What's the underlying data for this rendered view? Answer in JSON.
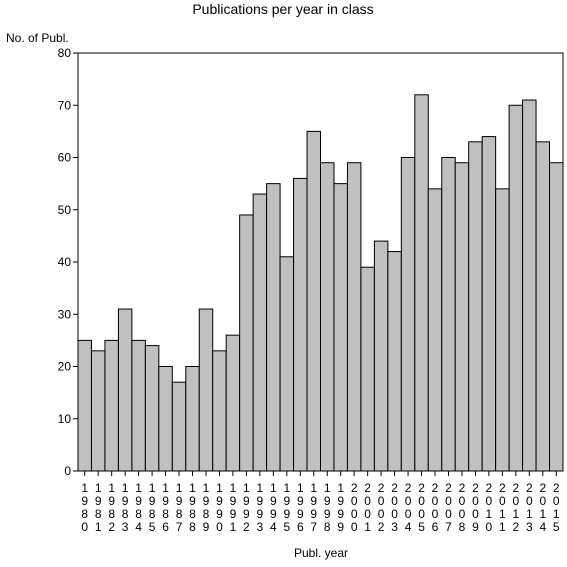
{
  "chart_data": {
    "type": "bar",
    "title": "Publications per year in class",
    "xlabel": "Publ. year",
    "ylabel": "No. of Publ.",
    "ylim": [
      0,
      80
    ],
    "yticks": [
      0,
      10,
      20,
      30,
      40,
      50,
      60,
      70,
      80
    ],
    "categories": [
      "1980",
      "1981",
      "1982",
      "1983",
      "1984",
      "1985",
      "1986",
      "1987",
      "1988",
      "1989",
      "1990",
      "1991",
      "1992",
      "1993",
      "1994",
      "1995",
      "1996",
      "1997",
      "1998",
      "1999",
      "2000",
      "2001",
      "2002",
      "2003",
      "2004",
      "2005",
      "2006",
      "2007",
      "2008",
      "2009",
      "2010",
      "2011",
      "2012",
      "2013",
      "2014",
      "2015"
    ],
    "values": [
      25,
      23,
      25,
      31,
      25,
      24,
      20,
      17,
      20,
      31,
      23,
      26,
      49,
      53,
      55,
      41,
      56,
      65,
      59,
      55,
      59,
      39,
      44,
      42,
      60,
      72,
      54,
      60,
      59,
      63,
      64,
      54,
      70,
      71,
      63,
      59
    ],
    "bar_color": "#c0c0c0",
    "bar_stroke": "#000000",
    "grid": false
  }
}
